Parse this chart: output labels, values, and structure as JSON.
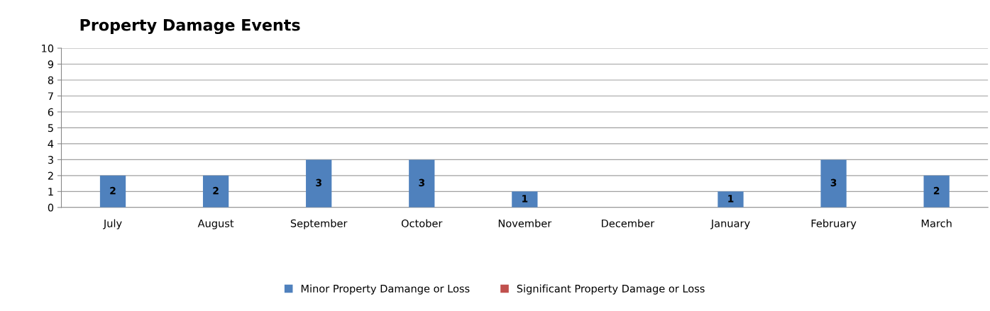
{
  "chart_data": {
    "type": "bar",
    "title": "Property Damage Events",
    "categories": [
      "July",
      "August",
      "September",
      "October",
      "November",
      "December",
      "January",
      "February",
      "March"
    ],
    "series": [
      {
        "name": "Minor Property Damange or Loss",
        "color": "#4f81bd",
        "values": [
          2,
          2,
          3,
          3,
          1,
          null,
          1,
          3,
          2
        ]
      },
      {
        "name": "Significant Property Damage or Loss",
        "color": "#c0504d",
        "values": [
          null,
          null,
          null,
          null,
          null,
          null,
          null,
          null,
          null
        ]
      }
    ],
    "ylim": [
      0,
      10
    ],
    "yticks": [
      0,
      1,
      2,
      3,
      4,
      5,
      6,
      7,
      8,
      9,
      10
    ],
    "grid": "y",
    "legend": "bottom",
    "data_labels": true
  }
}
